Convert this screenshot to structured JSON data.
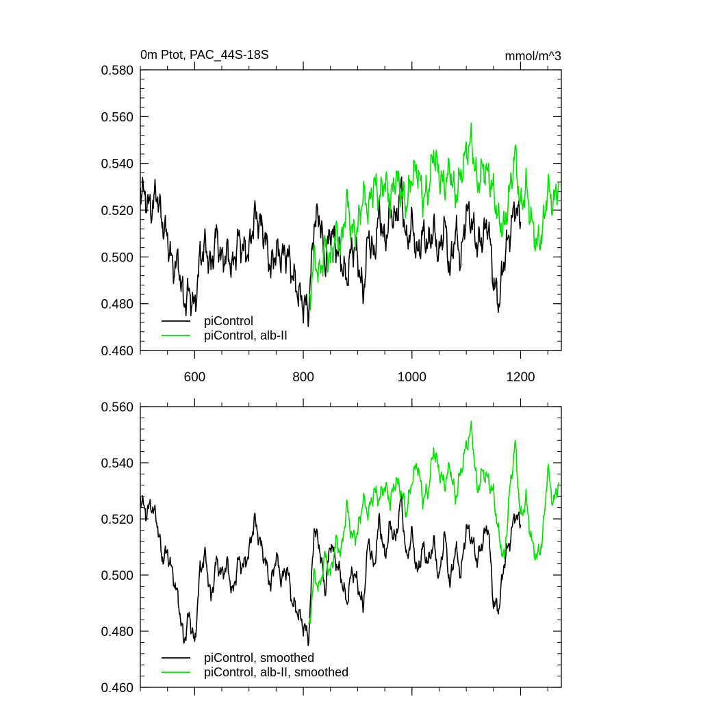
{
  "colors": {
    "black_series": "#000000",
    "green_series": "#00e000",
    "axis": "#000000",
    "background": "#ffffff"
  },
  "chart_data": [
    {
      "type": "line",
      "title_left": "0m Ptot, PAC_44S-18S",
      "title_right": "mmol/m^3",
      "xlim": [
        500,
        1275
      ],
      "ylim": [
        0.46,
        0.58
      ],
      "x_ticks": [
        600,
        800,
        1000,
        1200
      ],
      "x_tick_labels": [
        "600",
        "800",
        "1000",
        "1200"
      ],
      "y_ticks": [
        0.46,
        0.48,
        0.5,
        0.52,
        0.54,
        0.56,
        0.58
      ],
      "y_tick_labels": [
        "0.460",
        "0.480",
        "0.500",
        "0.520",
        "0.540",
        "0.560",
        "0.580"
      ],
      "legend": [
        "piControl",
        "piControl, alb-II"
      ],
      "series": [
        {
          "name": "piControl",
          "color": "#000000",
          "x": [
            500,
            510,
            520,
            530,
            540,
            550,
            560,
            570,
            580,
            590,
            600,
            610,
            620,
            630,
            640,
            650,
            660,
            670,
            680,
            690,
            700,
            710,
            720,
            730,
            740,
            750,
            760,
            770,
            780,
            790,
            800,
            810,
            820,
            830,
            840,
            850,
            860,
            870,
            880,
            890,
            900,
            910,
            920,
            930,
            940,
            950,
            960,
            970,
            980,
            990,
            1000,
            1010,
            1020,
            1030,
            1040,
            1050,
            1060,
            1070,
            1080,
            1090,
            1100,
            1110,
            1120,
            1130,
            1140,
            1150,
            1160,
            1170,
            1180,
            1190,
            1200
          ],
          "values": [
            0.53,
            0.525,
            0.52,
            0.528,
            0.515,
            0.508,
            0.495,
            0.498,
            0.48,
            0.485,
            0.478,
            0.5,
            0.505,
            0.495,
            0.51,
            0.498,
            0.502,
            0.495,
            0.508,
            0.503,
            0.502,
            0.518,
            0.515,
            0.508,
            0.495,
            0.503,
            0.5,
            0.502,
            0.493,
            0.485,
            0.48,
            0.478,
            0.515,
            0.518,
            0.497,
            0.512,
            0.505,
            0.498,
            0.49,
            0.505,
            0.5,
            0.483,
            0.51,
            0.5,
            0.52,
            0.505,
            0.52,
            0.515,
            0.53,
            0.505,
            0.515,
            0.5,
            0.51,
            0.505,
            0.512,
            0.5,
            0.515,
            0.493,
            0.512,
            0.498,
            0.52,
            0.515,
            0.505,
            0.508,
            0.515,
            0.49,
            0.48,
            0.5,
            0.51,
            0.522,
            0.515
          ]
        },
        {
          "name": "piControl, alb-II",
          "color": "#00e000",
          "x": [
            810,
            820,
            830,
            840,
            850,
            860,
            870,
            880,
            890,
            900,
            910,
            920,
            930,
            940,
            950,
            960,
            970,
            980,
            990,
            1000,
            1010,
            1020,
            1030,
            1040,
            1050,
            1060,
            1070,
            1080,
            1090,
            1100,
            1110,
            1120,
            1130,
            1140,
            1150,
            1160,
            1170,
            1180,
            1190,
            1200,
            1210,
            1220,
            1230,
            1240,
            1250,
            1260,
            1270
          ],
          "values": [
            0.478,
            0.5,
            0.492,
            0.505,
            0.498,
            0.51,
            0.505,
            0.525,
            0.51,
            0.512,
            0.527,
            0.52,
            0.532,
            0.525,
            0.533,
            0.523,
            0.535,
            0.528,
            0.522,
            0.535,
            0.538,
            0.525,
            0.528,
            0.545,
            0.535,
            0.53,
            0.538,
            0.525,
            0.535,
            0.545,
            0.55,
            0.53,
            0.538,
            0.535,
            0.528,
            0.515,
            0.512,
            0.528,
            0.545,
            0.52,
            0.53,
            0.515,
            0.505,
            0.51,
            0.53,
            0.522,
            0.532
          ]
        }
      ]
    },
    {
      "type": "line",
      "xlim": [
        500,
        1275
      ],
      "ylim": [
        0.46,
        0.56
      ],
      "x_ticks": [
        600,
        800,
        1000,
        1200
      ],
      "y_ticks": [
        0.46,
        0.48,
        0.5,
        0.52,
        0.54,
        0.56
      ],
      "y_tick_labels": [
        "0.460",
        "0.480",
        "0.500",
        "0.520",
        "0.540",
        "0.560"
      ],
      "legend": [
        "piControl, smoothed",
        "piControl, alb-II, smoothed"
      ],
      "series": [
        {
          "name": "piControl, smoothed",
          "color": "#000000",
          "x": [
            500,
            510,
            520,
            530,
            540,
            550,
            560,
            570,
            580,
            590,
            600,
            610,
            620,
            630,
            640,
            650,
            660,
            670,
            680,
            690,
            700,
            710,
            720,
            730,
            740,
            750,
            760,
            770,
            780,
            790,
            800,
            810,
            820,
            830,
            840,
            850,
            860,
            870,
            880,
            890,
            900,
            910,
            920,
            930,
            940,
            950,
            960,
            970,
            980,
            990,
            1000,
            1010,
            1020,
            1030,
            1040,
            1050,
            1060,
            1070,
            1080,
            1090,
            1100,
            1110,
            1120,
            1130,
            1140,
            1150,
            1160,
            1170,
            1180,
            1190,
            1200
          ],
          "values": [
            0.528,
            0.522,
            0.525,
            0.52,
            0.506,
            0.508,
            0.5,
            0.491,
            0.476,
            0.486,
            0.475,
            0.502,
            0.507,
            0.491,
            0.505,
            0.5,
            0.504,
            0.493,
            0.505,
            0.503,
            0.508,
            0.52,
            0.512,
            0.505,
            0.496,
            0.507,
            0.498,
            0.503,
            0.49,
            0.487,
            0.482,
            0.478,
            0.517,
            0.51,
            0.494,
            0.512,
            0.505,
            0.499,
            0.49,
            0.502,
            0.497,
            0.488,
            0.513,
            0.502,
            0.52,
            0.506,
            0.518,
            0.512,
            0.528,
            0.505,
            0.515,
            0.5,
            0.51,
            0.504,
            0.512,
            0.498,
            0.515,
            0.496,
            0.51,
            0.5,
            0.517,
            0.513,
            0.505,
            0.512,
            0.518,
            0.49,
            0.488,
            0.505,
            0.512,
            0.522,
            0.518
          ]
        },
        {
          "name": "piControl, alb-II, smoothed",
          "color": "#00e000",
          "x": [
            810,
            820,
            830,
            840,
            850,
            860,
            870,
            880,
            890,
            900,
            910,
            920,
            930,
            940,
            950,
            960,
            970,
            980,
            990,
            1000,
            1010,
            1020,
            1030,
            1040,
            1050,
            1060,
            1070,
            1080,
            1090,
            1100,
            1110,
            1120,
            1130,
            1140,
            1150,
            1160,
            1170,
            1180,
            1190,
            1200,
            1210,
            1220,
            1230,
            1240,
            1250,
            1260,
            1270
          ],
          "values": [
            0.48,
            0.5,
            0.495,
            0.507,
            0.5,
            0.512,
            0.508,
            0.525,
            0.513,
            0.515,
            0.527,
            0.522,
            0.53,
            0.527,
            0.532,
            0.526,
            0.534,
            0.53,
            0.522,
            0.534,
            0.54,
            0.527,
            0.53,
            0.545,
            0.537,
            0.532,
            0.539,
            0.527,
            0.537,
            0.546,
            0.552,
            0.53,
            0.537,
            0.534,
            0.529,
            0.514,
            0.505,
            0.53,
            0.547,
            0.52,
            0.527,
            0.512,
            0.506,
            0.512,
            0.538,
            0.525,
            0.533
          ]
        }
      ]
    }
  ]
}
